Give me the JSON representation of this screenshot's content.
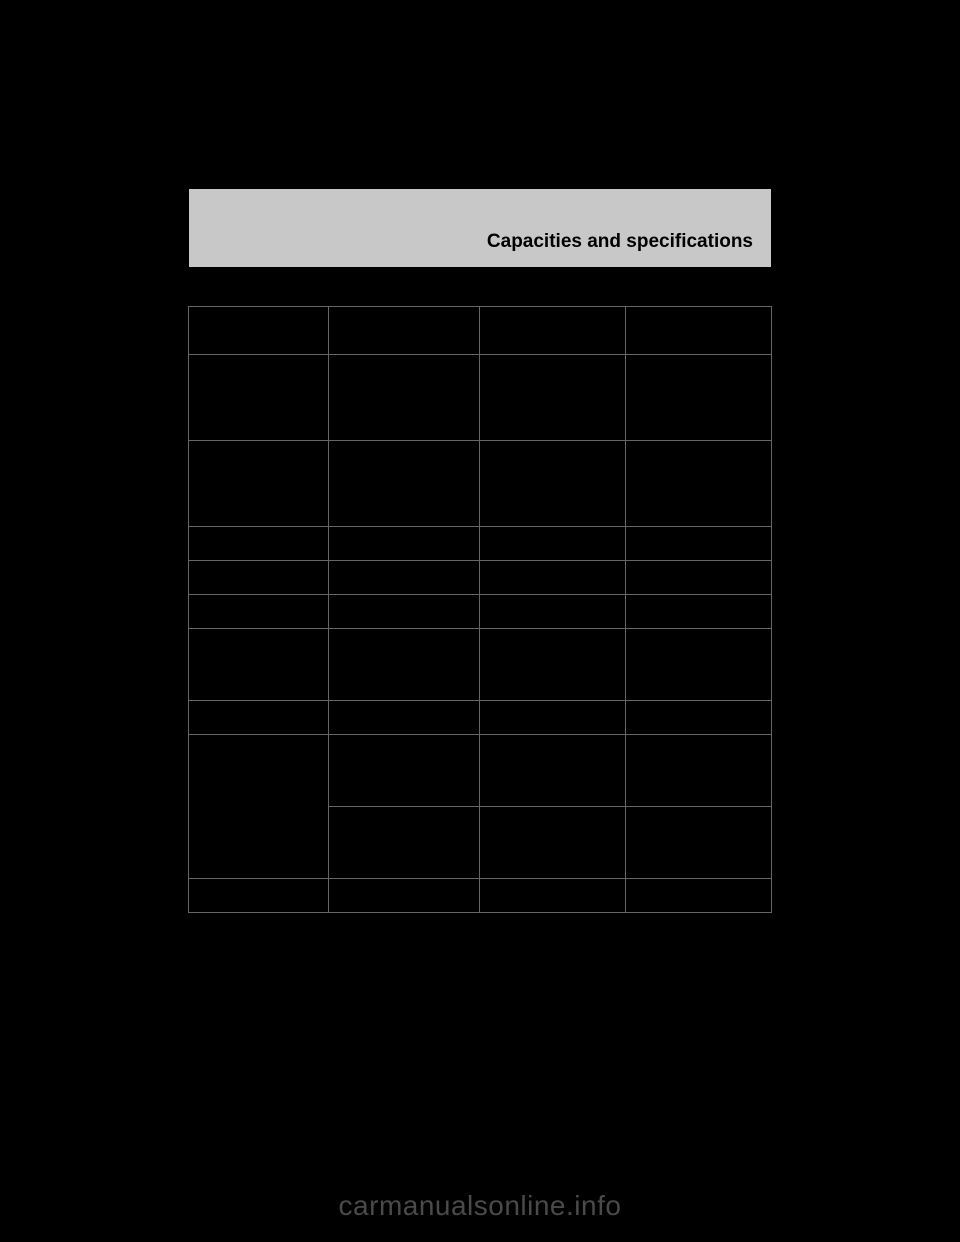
{
  "header": {
    "title": "Capacities and specifications"
  },
  "table": {
    "type": "table",
    "background_color": "#000000",
    "border_color": "#666666",
    "columns": [
      {
        "width_pct": 24
      },
      {
        "width_pct": 26
      },
      {
        "width_pct": 25
      },
      {
        "width_pct": 25
      }
    ],
    "rows": [
      {
        "cells": [
          "",
          "",
          "",
          ""
        ],
        "height_class": "h-med"
      },
      {
        "cells": [
          "",
          "",
          "",
          ""
        ],
        "height_class": "h-xlarge"
      },
      {
        "cells": [
          "",
          "",
          "",
          ""
        ],
        "height_class": "h-xlarge"
      },
      {
        "cells": [
          "",
          "",
          "",
          ""
        ],
        "height_class": "h-small"
      },
      {
        "cells": [
          "",
          "",
          "",
          ""
        ],
        "height_class": "h-small"
      },
      {
        "cells": [
          "",
          "",
          "",
          ""
        ],
        "height_class": "h-small"
      },
      {
        "cells": [
          "",
          "",
          "",
          ""
        ],
        "height_class": "h-large"
      },
      {
        "cells": [
          "",
          "",
          "",
          ""
        ],
        "height_class": "h-small"
      },
      {
        "cells": [
          "",
          "",
          "",
          ""
        ],
        "height_class": "h-large",
        "rowspan_first": 2
      },
      {
        "cells": [
          "",
          "",
          ""
        ],
        "height_class": "h-large",
        "continues": true
      },
      {
        "cells": [
          "",
          "",
          "",
          ""
        ],
        "height_class": "h-small"
      }
    ]
  },
  "watermark": "carmanualsonline.info",
  "colors": {
    "page_bg": "#000000",
    "header_bg": "#c8c8c8",
    "header_text": "#000000",
    "watermark_text": "#4a4a4a",
    "cell_border": "#666666"
  }
}
